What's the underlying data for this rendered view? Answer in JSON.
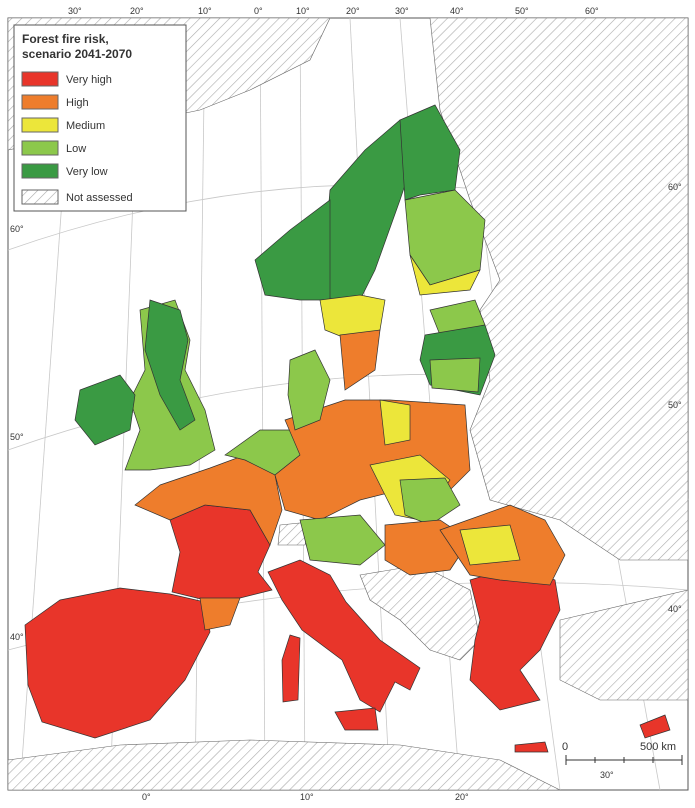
{
  "legend": {
    "title_lines": [
      "Forest fire risk,",
      "scenario 2041-2070"
    ],
    "items": [
      {
        "label": "Very high",
        "color": "#e8352a"
      },
      {
        "label": "High",
        "color": "#ee7d2c"
      },
      {
        "label": "Medium",
        "color": "#ece63a"
      },
      {
        "label": "Low",
        "color": "#8cc84b"
      },
      {
        "label": "Very low",
        "color": "#3a9a43"
      }
    ],
    "not_assessed": "Not assessed"
  },
  "graticule": {
    "top": [
      "30°",
      "20°",
      "10°",
      "0°",
      "10°",
      "20°",
      "30°",
      "40°",
      "50°",
      "60°"
    ],
    "left": [
      "60°",
      "50°",
      "40°"
    ],
    "right": [
      "60°",
      "50°",
      "40°"
    ],
    "bottom": [
      "0°",
      "10°",
      "20°",
      "30°"
    ]
  },
  "scale_bar": {
    "start": "0",
    "end": "500 km"
  }
}
